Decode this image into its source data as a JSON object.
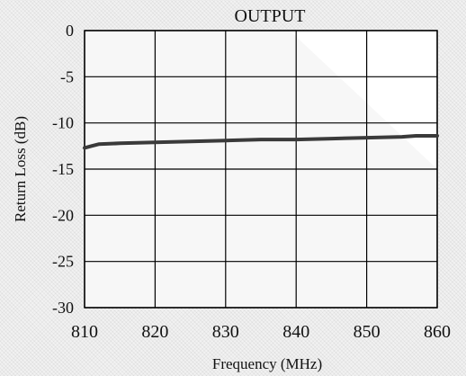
{
  "chart_data": {
    "type": "line",
    "title": "OUTPUT",
    "xlabel": "Frequency (MHz)",
    "ylabel": "Return Loss (dB)",
    "xlim": [
      810,
      860
    ],
    "ylim": [
      -30,
      0
    ],
    "x_ticks": [
      "810",
      "820",
      "830",
      "840",
      "850",
      "860"
    ],
    "y_ticks": [
      "0",
      "-5",
      "-10",
      "-15",
      "-20",
      "-25",
      "-30"
    ],
    "grid": true,
    "series": [
      {
        "x": [
          810,
          811,
          812,
          815,
          820,
          825,
          830,
          835,
          840,
          845,
          850,
          855,
          857,
          860
        ],
        "y": [
          -12.7,
          -12.5,
          -12.3,
          -12.2,
          -12.1,
          -12.0,
          -11.9,
          -11.8,
          -11.8,
          -11.7,
          -11.6,
          -11.5,
          -11.4,
          -11.4
        ],
        "color": "#3a3a3a"
      }
    ]
  }
}
